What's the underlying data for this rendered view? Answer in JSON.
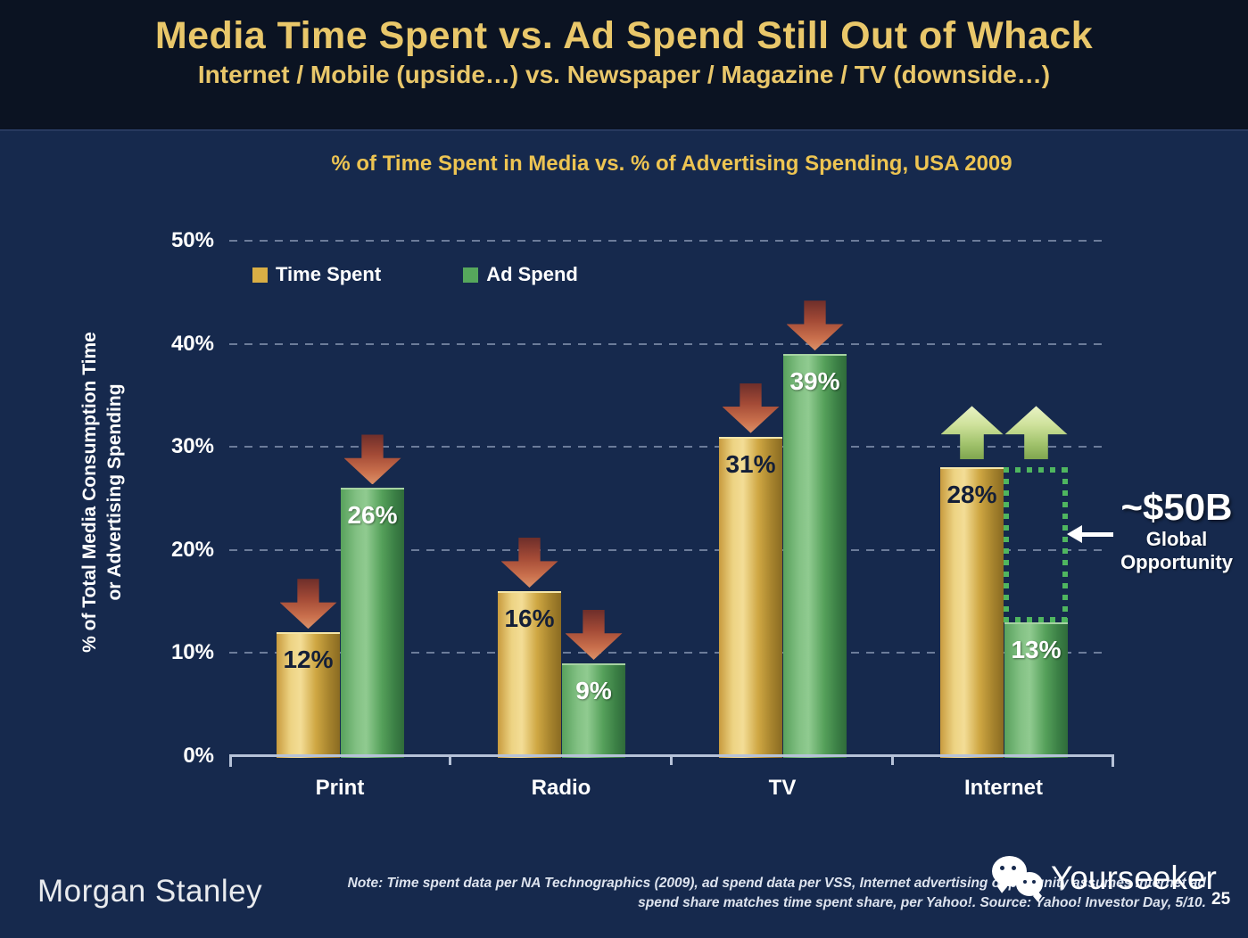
{
  "slide": {
    "title": "Media Time Spent vs. Ad Spend Still Out of Whack",
    "subtitle": "Internet / Mobile (upside…) vs. Newspaper / Magazine / TV (downside…)",
    "page_number": "25",
    "brand": "Morgan Stanley",
    "note_line1": "Note: Time spent data per NA Technographics (2009), ad spend data per VSS, Internet advertising opportunity assumes internet ad",
    "note_line2": "spend share matches time spent share, per Yahoo!. Source: Yahoo! Investor Day, 5/10.",
    "watermark_text": "Yourseeker"
  },
  "chart_data": {
    "type": "bar",
    "title": "% of Time Spent in Media vs. % of Advertising Spending, USA 2009",
    "ylabel_line1": "% of Total Media Consumption Time",
    "ylabel_line2": "or Advertising Spending",
    "categories": [
      "Print",
      "Radio",
      "TV",
      "Internet"
    ],
    "series": [
      {
        "name": "Time Spent",
        "values": [
          12,
          16,
          31,
          28
        ],
        "legend_color": "#d9ae45",
        "label_style": "dark",
        "bar_class": "bar-gold"
      },
      {
        "name": "Ad Spend",
        "values": [
          26,
          9,
          39,
          13
        ],
        "legend_color": "#56a75c",
        "label_style": "light",
        "bar_class": "bar-green"
      }
    ],
    "value_suffix": "%",
    "ylim": [
      0,
      50
    ],
    "yticks": [
      "0%",
      "10%",
      "20%",
      "30%",
      "40%",
      "50%"
    ],
    "ytick_step": 10,
    "grid": "dashed",
    "legend_position": "top-left",
    "trend_arrows": [
      [
        "down",
        "down"
      ],
      [
        "down",
        "down"
      ],
      [
        "down",
        "down"
      ],
      [
        "up",
        "up"
      ]
    ],
    "arrow_colors": {
      "down": "#c06a45",
      "up": "#a7c472"
    }
  },
  "annotation": {
    "amount": "~$50B",
    "label_line1": "Global",
    "label_line2": "Opportunity",
    "box_category": "Internet",
    "box_from_series": "Time Spent",
    "box_to_series": "Ad Spend",
    "box_color": "#4fb65f"
  },
  "colors": {
    "header_bg": "#0b1322",
    "body_bg": "#16294d",
    "title_gold": "#e9c76a",
    "chart_title_gold": "#edc452",
    "axis": "#b6c2d8",
    "grid": "#b2c0da"
  }
}
